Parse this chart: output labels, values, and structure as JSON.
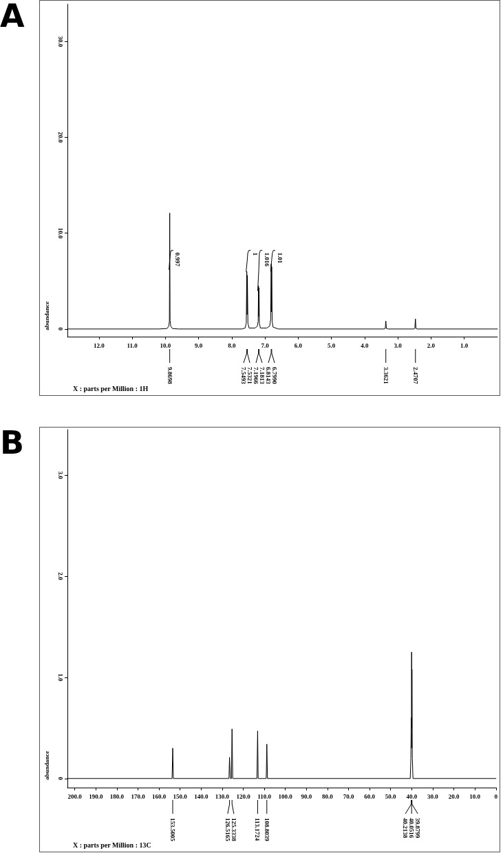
{
  "chart_data": [
    {
      "type": "line",
      "title": "A",
      "xlabel": "X : parts per Million : 1H",
      "ylabel": "abundance",
      "xlim": [
        12.95,
        0
      ],
      "ylim": [
        -0.8,
        33.9
      ],
      "xticks": [
        {
          "value": 12,
          "label": "12.0"
        },
        {
          "value": 11,
          "label": "11.0"
        },
        {
          "value": 10,
          "label": "10.0"
        },
        {
          "value": 9,
          "label": "9.0"
        },
        {
          "value": 8,
          "label": "8.0"
        },
        {
          "value": 7,
          "label": "7.0"
        },
        {
          "value": 6,
          "label": "6.0"
        },
        {
          "value": 5,
          "label": "5.0"
        },
        {
          "value": 4,
          "label": "4.0"
        },
        {
          "value": 3,
          "label": "3.0"
        },
        {
          "value": 2,
          "label": "2.0"
        },
        {
          "value": 1,
          "label": "1.0"
        }
      ],
      "yticks": [
        0,
        {
          "value": 10,
          "label": "10.0"
        },
        {
          "value": 20,
          "label": "20.0"
        },
        {
          "value": 30,
          "label": "30.0"
        }
      ],
      "grid": false,
      "marker": "none",
      "line_style": "solid",
      "series": [
        {
          "color": "#000000",
          "x": [
            12.95,
            10.2,
            9.95,
            9.9,
            9.88,
            9.8698,
            9.86,
            9.84,
            9.79,
            9.6,
            7.7,
            7.6,
            7.565,
            7.5493,
            7.54,
            7.5321,
            7.515,
            7.48,
            7.3,
            7.23,
            7.2066,
            7.1966,
            7.189,
            7.1813,
            7.17,
            7.14,
            6.95,
            6.86,
            6.83,
            6.8143,
            6.807,
            6.799,
            6.785,
            6.76,
            6.6,
            3.42,
            3.38,
            3.3621,
            3.345,
            3.3,
            2.52,
            2.49,
            2.4707,
            2.455,
            2.42,
            0
          ],
          "values": [
            0,
            0,
            0.05,
            0.3,
            0.8,
            12.1,
            0.9,
            0.3,
            0.05,
            0,
            0,
            0.1,
            0.6,
            6.0,
            1.5,
            5.6,
            0.6,
            0.1,
            0.1,
            0.3,
            0.8,
            4.5,
            1.3,
            4.3,
            0.6,
            0.1,
            0.1,
            0.3,
            1.0,
            6.8,
            1.8,
            6.5,
            0.8,
            0.2,
            0,
            0,
            0.05,
            0.83,
            0.05,
            0,
            0,
            0.05,
            1.05,
            0.05,
            0,
            0
          ]
        },
        {
          "type": "line",
          "color": "#000000",
          "x": [
            9.89,
            9.87,
            9.85,
            9.82,
            9.77
          ],
          "values": [
            6.2,
            7.2,
            7.95,
            8.2,
            8.2
          ]
        },
        {
          "type": "line",
          "color": "#000000",
          "x": [
            7.57,
            7.54,
            7.52,
            7.49,
            7.44
          ],
          "values": [
            6.0,
            7.0,
            7.9,
            8.2,
            8.2
          ]
        },
        {
          "type": "line",
          "color": "#000000",
          "x": [
            7.22,
            7.19,
            7.17,
            7.14,
            7.09
          ],
          "values": [
            4.0,
            6.0,
            7.9,
            8.2,
            8.2
          ]
        },
        {
          "type": "line",
          "color": "#000000",
          "x": [
            6.83,
            6.8,
            6.78,
            6.75,
            6.7
          ],
          "values": [
            6.0,
            7.2,
            7.9,
            8.2,
            8.2
          ]
        }
      ],
      "annotations": [
        {
          "text": "0.997",
          "x": 9.77,
          "y": 8.2
        },
        {
          "text": "1",
          "x": 7.44,
          "y": 8.2
        },
        {
          "text": "1.016",
          "x": 7.09,
          "y": 8.2
        },
        {
          "text": "1.01",
          "x": 6.7,
          "y": 8.2
        },
        {
          "text": "9.8698",
          "x": 9.8698
        },
        {
          "text": "7.5493",
          "x": 7.5493
        },
        {
          "text": "7.5321",
          "x": 7.5321
        },
        {
          "text": "7.1966",
          "x": 7.1966
        },
        {
          "text": "7.1813",
          "x": 7.1813
        },
        {
          "text": "6.8143",
          "x": 6.8143
        },
        {
          "text": "6.7990",
          "x": 6.799
        },
        {
          "text": "3.3621",
          "x": 3.3621
        },
        {
          "text": "2.4707",
          "x": 2.4707
        }
      ]
    },
    {
      "type": "line",
      "title": "B",
      "xlabel": "X : parts per Million : 13C",
      "ylabel": "abundance",
      "xlim": [
        203.5,
        0
      ],
      "ylim": [
        -0.09,
        3.45
      ],
      "xticks": [
        {
          "value": 200,
          "label": "200.0"
        },
        {
          "value": 190,
          "label": "190.0"
        },
        {
          "value": 180,
          "label": "180.0"
        },
        {
          "value": 170,
          "label": "170.0"
        },
        {
          "value": 160,
          "label": "160.0"
        },
        {
          "value": 150,
          "label": "150.0"
        },
        {
          "value": 140,
          "label": "140.0"
        },
        {
          "value": 130,
          "label": "130.0"
        },
        {
          "value": 120,
          "label": "120.0"
        },
        {
          "value": 110,
          "label": "110.0"
        },
        {
          "value": 100,
          "label": "100.0"
        },
        {
          "value": 90,
          "label": "90.0"
        },
        {
          "value": 80,
          "label": "80.0"
        },
        {
          "value": 70,
          "label": "70.0"
        },
        {
          "value": 60,
          "label": "60.0"
        },
        {
          "value": 50,
          "label": "50.0"
        },
        {
          "value": 40,
          "label": "40.0"
        },
        {
          "value": 30,
          "label": "30.0"
        },
        {
          "value": 20,
          "label": "20.0"
        },
        {
          "value": 10,
          "label": "10.0"
        },
        {
          "value": 0,
          "label": "0"
        }
      ],
      "yticks": [
        0,
        {
          "value": 1,
          "label": "1.0"
        },
        {
          "value": 2,
          "label": "2.0"
        },
        {
          "value": 3,
          "label": "3.0"
        }
      ],
      "grid": false,
      "marker": "none",
      "line_style": "solid",
      "series": [
        {
          "color": "#000000",
          "x": [
            203.5,
            153.8,
            153.5005,
            153.2,
            126.8,
            126.5165,
            126.1,
            125.6,
            125.3338,
            125.0,
            113.5,
            113.1724,
            112.9,
            109.1,
            108.8039,
            108.5,
            40.7,
            40.4,
            40.2138,
            40.13,
            40.0516,
            39.96,
            39.8799,
            39.7,
            39.4,
            0
          ],
          "values": [
            0,
            0,
            0.3,
            0,
            0,
            0.21,
            0,
            0,
            0.49,
            0,
            0,
            0.47,
            0,
            0,
            0.34,
            0,
            0,
            0.2,
            0.6,
            0.3,
            1.25,
            0.5,
            1.08,
            0.2,
            0,
            0
          ]
        }
      ],
      "annotations": [
        {
          "text": "153.5005",
          "x": 153.5005
        },
        {
          "text": "126.5165",
          "x": 126.5165
        },
        {
          "text": "125.3338",
          "x": 125.3338
        },
        {
          "text": "113.1724",
          "x": 113.1724
        },
        {
          "text": "108.8039",
          "x": 108.8039
        },
        {
          "text": "40.2138",
          "x": 40.2138
        },
        {
          "text": "40.0516",
          "x": 40.0516
        },
        {
          "text": "39.8799",
          "x": 39.8799
        }
      ]
    }
  ]
}
